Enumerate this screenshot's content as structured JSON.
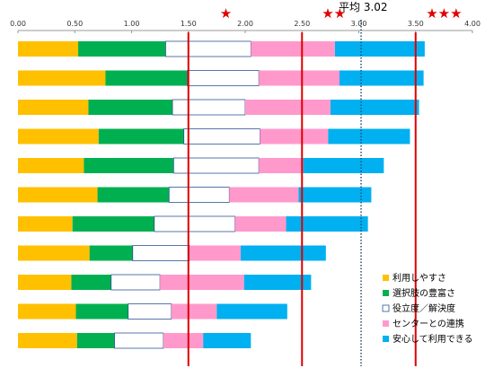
{
  "chart_data": {
    "type": "bar",
    "orientation": "horizontal",
    "stacked": true,
    "xlim": [
      0,
      4
    ],
    "x_ticks": [
      "0.00",
      "0.50",
      "1.00",
      "1.50",
      "2.00",
      "2.50",
      "3.00",
      "3.50",
      "4.00"
    ],
    "average_label": "平均 3.02",
    "average_value": 3.02,
    "reference_lines": [
      1.5,
      2.5,
      3.5
    ],
    "star_markers": [
      {
        "text": "★",
        "value": 1.83
      },
      {
        "text": "★★",
        "value": 2.78
      },
      {
        "text": "★★★",
        "value": 3.75
      }
    ],
    "legend_position": "bottom-right",
    "series": [
      {
        "name": "利用しやすさ",
        "color": "#FFC000",
        "values": [
          0.53,
          0.77,
          0.62,
          0.71,
          0.58,
          0.7,
          0.48,
          0.63,
          0.47,
          0.51,
          0.52
        ]
      },
      {
        "name": "選択肢の豊富さ",
        "color": "#00B050",
        "values": [
          0.77,
          0.72,
          0.74,
          0.75,
          0.79,
          0.63,
          0.72,
          0.38,
          0.35,
          0.46,
          0.33
        ]
      },
      {
        "name": "役立度／解決度",
        "color": "#FFFFFF",
        "values": [
          0.75,
          0.63,
          0.64,
          0.67,
          0.75,
          0.53,
          0.71,
          0.5,
          0.43,
          0.38,
          0.43
        ]
      },
      {
        "name": "センターとの連携",
        "color": "#FF99CC",
        "values": [
          0.74,
          0.71,
          0.75,
          0.6,
          0.39,
          0.61,
          0.45,
          0.45,
          0.74,
          0.4,
          0.35
        ]
      },
      {
        "name": "安心して利用できる",
        "color": "#00B0F0",
        "values": [
          0.79,
          0.74,
          0.78,
          0.72,
          0.71,
          0.64,
          0.72,
          0.75,
          0.59,
          0.62,
          0.42
        ]
      }
    ]
  }
}
